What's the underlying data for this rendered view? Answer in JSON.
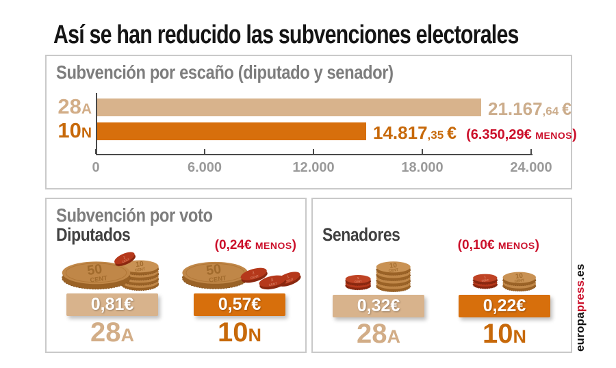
{
  "title": "Así se han reducido las subvenciones electorales",
  "seat_chart": {
    "heading": "Subvención por escaño (diputado y senador)",
    "rows": [
      {
        "label": "28",
        "suffix": "A",
        "value": "21.167",
        "decimals": ",64",
        "euro": "€"
      },
      {
        "label": "10",
        "suffix": "N",
        "value": "14.817",
        "decimals": ",35",
        "euro": "€"
      }
    ],
    "diff": {
      "amount": "(6.350,29€",
      "menos": "MENOS",
      "close": ")"
    },
    "ticks": [
      "0",
      "6.000",
      "12.000",
      "18.000",
      "24.000"
    ]
  },
  "vote_chart": {
    "heading": "Subvención por voto",
    "diputados": {
      "name": "Diputados",
      "diff": {
        "amount": "(0,24€",
        "menos": "MENOS",
        "close": ")"
      },
      "cols": [
        {
          "badge": "0,81€",
          "label": "28",
          "suffix": "A"
        },
        {
          "badge": "0,57€",
          "label": "10",
          "suffix": "N"
        }
      ]
    },
    "senadores": {
      "name": "Senadores",
      "diff": {
        "amount": "(0,10€",
        "menos": "MENOS",
        "close": ")"
      },
      "cols": [
        {
          "badge": "0,32€",
          "label": "28",
          "suffix": "A"
        },
        {
          "badge": "0,22€",
          "label": "10",
          "suffix": "N"
        }
      ]
    }
  },
  "coins": {
    "fifty": "50",
    "ten": "10",
    "two": "2",
    "one": "1",
    "cent": "CENT"
  },
  "source": {
    "part1": "europa",
    "part2": "press",
    "part3": ".es"
  },
  "colors": {
    "tan": "#d8b38c",
    "orange": "#d76f0c",
    "red": "#cb0f2a",
    "heading_gray": "#7d7d7d"
  },
  "chart_data": [
    {
      "type": "bar",
      "orientation": "horizontal",
      "title": "Subvención por escaño (diputado y senador)",
      "categories": [
        "28A",
        "10N"
      ],
      "values": [
        21167.64,
        14817.35
      ],
      "value_labels": [
        "21.167,64 €",
        "14.817,35 €"
      ],
      "annotations": [
        "(6.350,29€ MENOS)"
      ],
      "xlim": [
        0,
        24000
      ],
      "xticks": [
        0,
        6000,
        12000,
        18000,
        24000
      ],
      "xtick_labels": [
        "0",
        "6.000",
        "12.000",
        "18.000",
        "24.000"
      ],
      "unit": "EUR",
      "grid": false,
      "series_colors": [
        "#d8b38c",
        "#d76f0c"
      ]
    },
    {
      "type": "bar",
      "title": "Subvención por voto",
      "groups": [
        {
          "name": "Diputados",
          "categories": [
            "28A",
            "10N"
          ],
          "values": [
            0.81,
            0.57
          ],
          "difference": 0.24,
          "difference_label": "(0,24€ MENOS)"
        },
        {
          "name": "Senadores",
          "categories": [
            "28A",
            "10N"
          ],
          "values": [
            0.32,
            0.22
          ],
          "difference": 0.1,
          "difference_label": "(0,10€ MENOS)"
        }
      ],
      "unit": "EUR",
      "series_colors": [
        "#d8b38c",
        "#d76f0c"
      ]
    }
  ]
}
